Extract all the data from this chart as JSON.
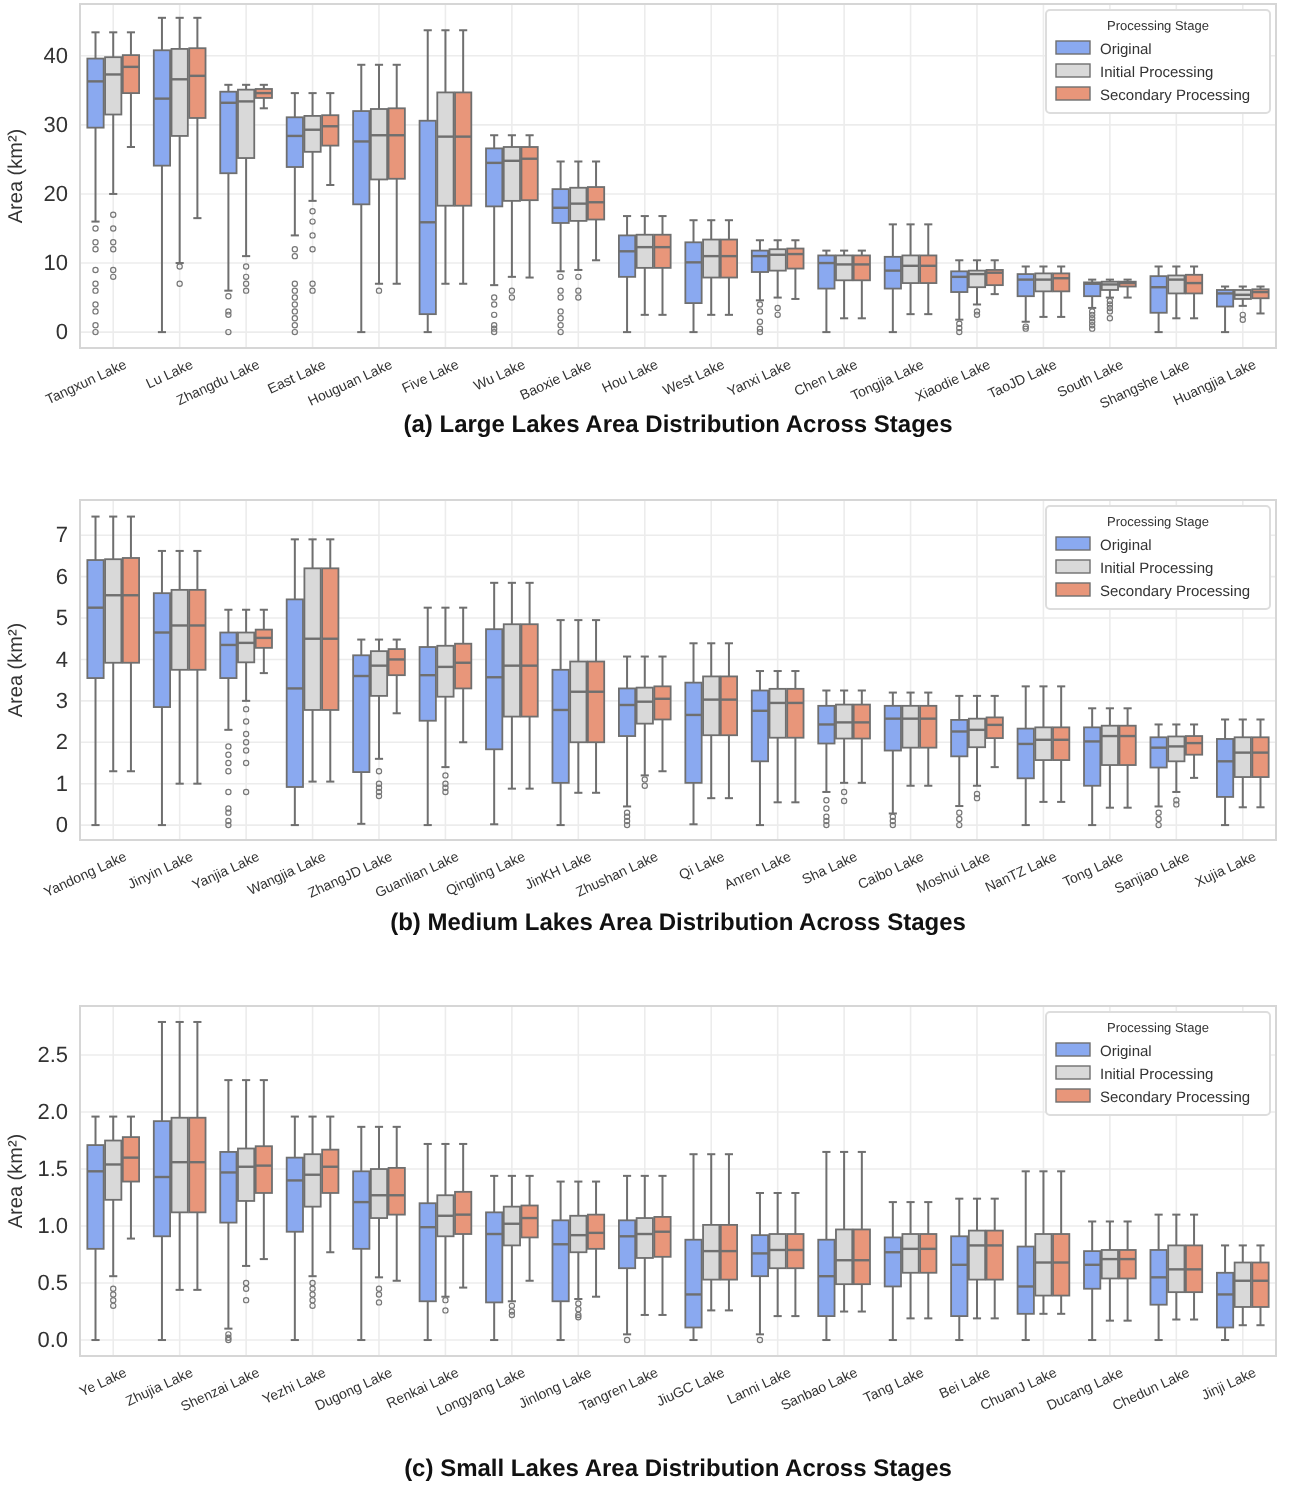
{
  "chart_data": [
    {
      "type": "box",
      "title": "(a) Large Lakes Area Distribution Across Stages",
      "ylabel": "Area (km²)",
      "legend_title": "Processing Stage",
      "legend": "top right",
      "grid": true,
      "categories": [
        "Tangxun Lake",
        "Lu Lake",
        "Zhangdu Lake",
        "East Lake",
        "Houguan Lake",
        "Five Lake",
        "Wu Lake",
        "Baoxie Lake",
        "Hou Lake",
        "West Lake",
        "Yanxi Lake",
        "Chen Lake",
        "Tongjia Lake",
        "Xiaodie Lake",
        "TaoJD Lake",
        "South Lake",
        "Shangshe Lake",
        "Huangjia Lake"
      ],
      "ylim": [
        -2.3,
        47.5
      ],
      "yticks": [
        0,
        10,
        20,
        30,
        40
      ],
      "series": [
        {
          "name": "Original",
          "color": "#8aa9f0",
          "boxes": [
            {
              "low": 16,
              "q1": 29.6,
              "median": 36.3,
              "q3": 39.6,
              "high": 43.4,
              "outliers": [
                15,
                13,
                12,
                9,
                7,
                6,
                4,
                3,
                1,
                0
              ]
            },
            {
              "low": 0,
              "q1": 24.1,
              "median": 33.8,
              "q3": 40.8,
              "high": 45.5
            },
            {
              "low": 6,
              "q1": 23,
              "median": 33.2,
              "q3": 34.8,
              "high": 35.8,
              "outliers": [
                5.2,
                3,
                2.5,
                0
              ]
            },
            {
              "low": 14,
              "q1": 23.9,
              "median": 28.4,
              "q3": 31.1,
              "high": 34.6,
              "outliers": [
                12,
                11,
                7,
                6,
                5,
                4,
                3,
                2,
                1,
                0
              ]
            },
            {
              "low": 0,
              "q1": 18.5,
              "median": 27.6,
              "q3": 32,
              "high": 38.7
            },
            {
              "low": 0,
              "q1": 2.6,
              "median": 15.9,
              "q3": 30.6,
              "high": 43.7
            },
            {
              "low": 6.8,
              "q1": 18.2,
              "median": 24.5,
              "q3": 26.6,
              "high": 28.5,
              "outliers": [
                5,
                4,
                2.5,
                1,
                0.5,
                0
              ]
            },
            {
              "low": 8.8,
              "q1": 15.8,
              "median": 18,
              "q3": 20.7,
              "high": 24.7,
              "outliers": [
                8,
                6,
                5,
                3,
                2,
                1,
                0
              ]
            },
            {
              "low": 0,
              "q1": 8,
              "median": 11.7,
              "q3": 14,
              "high": 16.8
            },
            {
              "low": 0,
              "q1": 4.2,
              "median": 10.1,
              "q3": 13,
              "high": 16.2
            },
            {
              "low": 4.6,
              "q1": 8.7,
              "median": 11,
              "q3": 11.8,
              "high": 13.3,
              "outliers": [
                4,
                3,
                1.5,
                0.5,
                0
              ]
            },
            {
              "low": 0,
              "q1": 6.3,
              "median": 10,
              "q3": 11.1,
              "high": 11.8
            },
            {
              "low": 0,
              "q1": 6.3,
              "median": 8.9,
              "q3": 10.9,
              "high": 15.6
            },
            {
              "low": 1.8,
              "q1": 5.8,
              "median": 8,
              "q3": 8.8,
              "high": 10.4,
              "outliers": [
                1.2,
                0.6,
                0
              ]
            },
            {
              "low": 1.5,
              "q1": 5.2,
              "median": 7.6,
              "q3": 8.4,
              "high": 9.5,
              "outliers": [
                0.8,
                0.5
              ]
            },
            {
              "low": 3.5,
              "q1": 5.2,
              "median": 7,
              "q3": 7.2,
              "high": 7.6,
              "outliers": [
                3,
                2.5,
                2,
                1.5,
                1,
                0.5
              ]
            },
            {
              "low": 0,
              "q1": 2.8,
              "median": 6.5,
              "q3": 8.1,
              "high": 9.5
            },
            {
              "low": 0,
              "q1": 3.7,
              "median": 5.6,
              "q3": 6.1,
              "high": 6.6
            }
          ]
        },
        {
          "name": "Initial Processing",
          "color": "#d9d9d9",
          "boxes": [
            {
              "low": 20,
              "q1": 31.5,
              "median": 37.3,
              "q3": 39.8,
              "high": 43.4,
              "outliers": [
                17,
                15,
                13,
                12,
                9,
                8
              ]
            },
            {
              "low": 10,
              "q1": 28.4,
              "median": 36.6,
              "q3": 41,
              "high": 45.5,
              "outliers": [
                9.5,
                7
              ]
            },
            {
              "low": 11,
              "q1": 25.2,
              "median": 33.4,
              "q3": 35.1,
              "high": 35.8,
              "outliers": [
                9.5,
                8,
                7,
                6
              ]
            },
            {
              "low": 19,
              "q1": 26.1,
              "median": 29.3,
              "q3": 31.3,
              "high": 34.6,
              "outliers": [
                17.5,
                16,
                14,
                12,
                7,
                6
              ]
            },
            {
              "low": 7,
              "q1": 22.1,
              "median": 28.5,
              "q3": 32.3,
              "high": 38.7,
              "outliers": [
                6
              ]
            },
            {
              "low": 7,
              "q1": 18.3,
              "median": 28.3,
              "q3": 34.7,
              "high": 43.7
            },
            {
              "low": 8,
              "q1": 19,
              "median": 24.8,
              "q3": 26.8,
              "high": 28.5,
              "outliers": [
                6,
                5
              ]
            },
            {
              "low": 9,
              "q1": 16.1,
              "median": 18.6,
              "q3": 20.9,
              "high": 24.7,
              "outliers": [
                8,
                6,
                5
              ]
            },
            {
              "low": 2.5,
              "q1": 9.3,
              "median": 12.3,
              "q3": 14.1,
              "high": 16.8
            },
            {
              "low": 2.5,
              "q1": 7.9,
              "median": 11,
              "q3": 13.4,
              "high": 16.2
            },
            {
              "low": 5,
              "q1": 8.9,
              "median": 11.2,
              "q3": 12,
              "high": 13.3,
              "outliers": [
                3.5,
                2.5
              ]
            },
            {
              "low": 2,
              "q1": 7.5,
              "median": 9.8,
              "q3": 11.1,
              "high": 11.8
            },
            {
              "low": 2.6,
              "q1": 7.1,
              "median": 9.6,
              "q3": 11.1,
              "high": 15.6
            },
            {
              "low": 4,
              "q1": 6.5,
              "median": 8.4,
              "q3": 8.9,
              "high": 10.4,
              "outliers": [
                3,
                2.5
              ]
            },
            {
              "low": 2.2,
              "q1": 5.9,
              "median": 7.6,
              "q3": 8.5,
              "high": 9.5
            },
            {
              "low": 5,
              "q1": 6.1,
              "median": 6.9,
              "q3": 7.3,
              "high": 7.6,
              "outliers": [
                4.5,
                4,
                3.5,
                3,
                2
              ]
            },
            {
              "low": 2,
              "q1": 5.6,
              "median": 7.6,
              "q3": 8.2,
              "high": 9.5
            },
            {
              "low": 3.8,
              "q1": 4.8,
              "median": 5.4,
              "q3": 6.1,
              "high": 6.6,
              "outliers": [
                2.5,
                1.8
              ]
            }
          ]
        },
        {
          "name": "Secondary Processing",
          "color": "#e8967a",
          "boxes": [
            {
              "low": 26.8,
              "q1": 34.6,
              "median": 38.4,
              "q3": 40.1,
              "high": 43.4
            },
            {
              "low": 16.5,
              "q1": 31,
              "median": 37.1,
              "q3": 41.1,
              "high": 45.5
            },
            {
              "low": 32.4,
              "q1": 33.9,
              "median": 34.6,
              "q3": 35.2,
              "high": 35.8
            },
            {
              "low": 21.3,
              "q1": 27,
              "median": 29.8,
              "q3": 31.4,
              "high": 34.6
            },
            {
              "low": 7,
              "q1": 22.2,
              "median": 28.5,
              "q3": 32.4,
              "high": 38.7
            },
            {
              "low": 7,
              "q1": 18.3,
              "median": 28.3,
              "q3": 34.7,
              "high": 43.7
            },
            {
              "low": 7.9,
              "q1": 19.1,
              "median": 25.1,
              "q3": 26.8,
              "high": 28.5
            },
            {
              "low": 10.4,
              "q1": 16.3,
              "median": 18.8,
              "q3": 21,
              "high": 24.7
            },
            {
              "low": 2.5,
              "q1": 9.3,
              "median": 12.3,
              "q3": 14.1,
              "high": 16.8
            },
            {
              "low": 2.5,
              "q1": 7.9,
              "median": 11,
              "q3": 13.4,
              "high": 16.2
            },
            {
              "low": 4.8,
              "q1": 9.2,
              "median": 11.3,
              "q3": 12.1,
              "high": 13.3
            },
            {
              "low": 2,
              "q1": 7.5,
              "median": 9.8,
              "q3": 11.1,
              "high": 11.8
            },
            {
              "low": 2.6,
              "q1": 7.1,
              "median": 9.6,
              "q3": 11.1,
              "high": 15.6
            },
            {
              "low": 5.5,
              "q1": 6.8,
              "median": 8.6,
              "q3": 9,
              "high": 10.4
            },
            {
              "low": 2.2,
              "q1": 5.9,
              "median": 7.8,
              "q3": 8.5,
              "high": 9.5
            },
            {
              "low": 5,
              "q1": 6.6,
              "median": 7.1,
              "q3": 7.3,
              "high": 7.6
            },
            {
              "low": 2,
              "q1": 5.6,
              "median": 7.1,
              "q3": 8.3,
              "high": 9.5
            },
            {
              "low": 2.7,
              "q1": 4.9,
              "median": 5.8,
              "q3": 6.2,
              "high": 6.6
            }
          ]
        }
      ]
    },
    {
      "type": "box",
      "title": "(b) Medium Lakes Area Distribution Across Stages",
      "ylabel": "Area (km²)",
      "legend_title": "Processing Stage",
      "legend": "top right",
      "grid": true,
      "categories": [
        "Yandong Lake",
        "Jinyin Lake",
        "Yanjia Lake",
        "Wangjia Lake",
        "ZhangJD Lake",
        "Guanlian Lake",
        "Qingling Lake",
        "JinKH Lake",
        "Zhushan Lake",
        "Qi Lake",
        "Anren Lake",
        "Sha Lake",
        "Caibo Lake",
        "Moshui Lake",
        "NanTZ Lake",
        "Tong Lake",
        "Sanjiao Lake",
        "Xujia Lake"
      ],
      "ylim": [
        -0.36,
        7.85
      ],
      "yticks": [
        0,
        1,
        2,
        3,
        4,
        5,
        6,
        7
      ],
      "series": [
        {
          "name": "Original",
          "color": "#8aa9f0",
          "boxes": [
            {
              "low": 0,
              "q1": 3.55,
              "median": 5.25,
              "q3": 6.4,
              "high": 7.45
            },
            {
              "low": 0,
              "q1": 2.85,
              "median": 4.65,
              "q3": 5.6,
              "high": 6.62
            },
            {
              "low": 2.3,
              "q1": 3.55,
              "median": 4.35,
              "q3": 4.65,
              "high": 5.2,
              "outliers": [
                1.9,
                1.7,
                1.5,
                1.3,
                0.8,
                0.4,
                0.3,
                0.1,
                0
              ]
            },
            {
              "low": 0,
              "q1": 0.92,
              "median": 3.3,
              "q3": 5.45,
              "high": 6.9
            },
            {
              "low": 0.03,
              "q1": 1.28,
              "median": 3.6,
              "q3": 4.1,
              "high": 4.48
            },
            {
              "low": 0,
              "q1": 2.52,
              "median": 3.62,
              "q3": 4.3,
              "high": 5.25
            },
            {
              "low": 0.02,
              "q1": 1.83,
              "median": 3.57,
              "q3": 4.73,
              "high": 5.85
            },
            {
              "low": 0,
              "q1": 1.02,
              "median": 2.78,
              "q3": 3.75,
              "high": 4.95
            },
            {
              "low": 0.45,
              "q1": 2.15,
              "median": 2.9,
              "q3": 3.3,
              "high": 4.07,
              "outliers": [
                0.3,
                0.2,
                0.1,
                0
              ]
            },
            {
              "low": 0.02,
              "q1": 1.02,
              "median": 2.66,
              "q3": 3.44,
              "high": 4.39
            },
            {
              "low": 0,
              "q1": 1.54,
              "median": 2.76,
              "q3": 3.25,
              "high": 3.72
            },
            {
              "low": 0.8,
              "q1": 1.97,
              "median": 2.43,
              "q3": 2.88,
              "high": 3.25,
              "outliers": [
                0.6,
                0.4,
                0.2,
                0.1,
                0
              ]
            },
            {
              "low": 0.28,
              "q1": 1.8,
              "median": 2.57,
              "q3": 2.88,
              "high": 3.2,
              "outliers": [
                0.2,
                0.1,
                0
              ]
            },
            {
              "low": 0.46,
              "q1": 1.66,
              "median": 2.26,
              "q3": 2.54,
              "high": 3.12,
              "outliers": [
                0.3,
                0.15,
                0
              ]
            },
            {
              "low": 0,
              "q1": 1.13,
              "median": 1.96,
              "q3": 2.33,
              "high": 3.35
            },
            {
              "low": 0,
              "q1": 0.95,
              "median": 2.02,
              "q3": 2.36,
              "high": 2.82
            },
            {
              "low": 0.45,
              "q1": 1.39,
              "median": 1.87,
              "q3": 2.12,
              "high": 2.43,
              "outliers": [
                0.3,
                0.15,
                0
              ]
            },
            {
              "low": 0,
              "q1": 0.68,
              "median": 1.54,
              "q3": 2.08,
              "high": 2.55
            }
          ]
        },
        {
          "name": "Initial Processing",
          "color": "#d9d9d9",
          "boxes": [
            {
              "low": 1.3,
              "q1": 3.92,
              "median": 5.55,
              "q3": 6.42,
              "high": 7.45
            },
            {
              "low": 1,
              "q1": 3.75,
              "median": 4.82,
              "q3": 5.68,
              "high": 6.62
            },
            {
              "low": 3,
              "q1": 3.93,
              "median": 4.4,
              "q3": 4.65,
              "high": 5.2,
              "outliers": [
                2.8,
                2.5,
                2.2,
                2,
                1.8,
                1.5,
                0.8
              ]
            },
            {
              "low": 1.05,
              "q1": 2.78,
              "median": 4.5,
              "q3": 6.2,
              "high": 6.9
            },
            {
              "low": 1.6,
              "q1": 3.12,
              "median": 3.85,
              "q3": 4.2,
              "high": 4.48,
              "outliers": [
                1.3,
                1,
                0.9,
                0.8,
                0.7
              ]
            },
            {
              "low": 1.4,
              "q1": 3.1,
              "median": 3.82,
              "q3": 4.33,
              "high": 5.25,
              "outliers": [
                1.2,
                1,
                0.9,
                0.8
              ]
            },
            {
              "low": 0.88,
              "q1": 2.62,
              "median": 3.85,
              "q3": 4.85,
              "high": 5.85
            },
            {
              "low": 0.78,
              "q1": 2,
              "median": 3.22,
              "q3": 3.95,
              "high": 4.95
            },
            {
              "low": 1.2,
              "q1": 2.45,
              "median": 2.98,
              "q3": 3.32,
              "high": 4.07,
              "outliers": [
                1.1,
                0.95
              ]
            },
            {
              "low": 0.65,
              "q1": 2.17,
              "median": 3.03,
              "q3": 3.59,
              "high": 4.39
            },
            {
              "low": 0.55,
              "q1": 2.11,
              "median": 2.95,
              "q3": 3.29,
              "high": 3.72
            },
            {
              "low": 1.02,
              "q1": 2.09,
              "median": 2.48,
              "q3": 2.91,
              "high": 3.25,
              "outliers": [
                0.8,
                0.58
              ]
            },
            {
              "low": 0.95,
              "q1": 1.87,
              "median": 2.57,
              "q3": 2.88,
              "high": 3.2
            },
            {
              "low": 0.95,
              "q1": 1.88,
              "median": 2.3,
              "q3": 2.57,
              "high": 3.12,
              "outliers": [
                0.75,
                0.65
              ]
            },
            {
              "low": 0.56,
              "q1": 1.57,
              "median": 2.06,
              "q3": 2.36,
              "high": 3.35
            },
            {
              "low": 0.42,
              "q1": 1.45,
              "median": 2.15,
              "q3": 2.4,
              "high": 2.82
            },
            {
              "low": 0.8,
              "q1": 1.54,
              "median": 1.9,
              "q3": 2.14,
              "high": 2.43,
              "outliers": [
                0.6,
                0.5
              ]
            },
            {
              "low": 0.43,
              "q1": 1.16,
              "median": 1.75,
              "q3": 2.12,
              "high": 2.55
            }
          ]
        },
        {
          "name": "Secondary Processing",
          "color": "#e8967a",
          "boxes": [
            {
              "low": 1.3,
              "q1": 3.92,
              "median": 5.55,
              "q3": 6.45,
              "high": 7.45
            },
            {
              "low": 1,
              "q1": 3.75,
              "median": 4.82,
              "q3": 5.68,
              "high": 6.62
            },
            {
              "low": 3.67,
              "q1": 4.28,
              "median": 4.52,
              "q3": 4.72,
              "high": 5.2
            },
            {
              "low": 1.05,
              "q1": 2.78,
              "median": 4.5,
              "q3": 6.2,
              "high": 6.9
            },
            {
              "low": 2.7,
              "q1": 3.62,
              "median": 4,
              "q3": 4.25,
              "high": 4.48
            },
            {
              "low": 2,
              "q1": 3.3,
              "median": 3.92,
              "q3": 4.38,
              "high": 5.25
            },
            {
              "low": 0.88,
              "q1": 2.62,
              "median": 3.85,
              "q3": 4.85,
              "high": 5.85
            },
            {
              "low": 0.78,
              "q1": 2,
              "median": 3.22,
              "q3": 3.95,
              "high": 4.95
            },
            {
              "low": 1.3,
              "q1": 2.55,
              "median": 3.05,
              "q3": 3.35,
              "high": 4.07
            },
            {
              "low": 0.65,
              "q1": 2.17,
              "median": 3.03,
              "q3": 3.59,
              "high": 4.39
            },
            {
              "low": 0.55,
              "q1": 2.11,
              "median": 2.95,
              "q3": 3.29,
              "high": 3.72
            },
            {
              "low": 1.02,
              "q1": 2.09,
              "median": 2.48,
              "q3": 2.91,
              "high": 3.25
            },
            {
              "low": 0.95,
              "q1": 1.87,
              "median": 2.57,
              "q3": 2.88,
              "high": 3.2
            },
            {
              "low": 1.4,
              "q1": 2.1,
              "median": 2.42,
              "q3": 2.6,
              "high": 3.12
            },
            {
              "low": 0.56,
              "q1": 1.57,
              "median": 2.06,
              "q3": 2.36,
              "high": 3.35
            },
            {
              "low": 0.42,
              "q1": 1.45,
              "median": 2.15,
              "q3": 2.4,
              "high": 2.82
            },
            {
              "low": 1.14,
              "q1": 1.7,
              "median": 1.98,
              "q3": 2.15,
              "high": 2.43
            },
            {
              "low": 0.43,
              "q1": 1.16,
              "median": 1.75,
              "q3": 2.12,
              "high": 2.55
            }
          ]
        }
      ]
    },
    {
      "type": "box",
      "title": "(c) Small Lakes Area Distribution Across Stages",
      "ylabel": "Area (km²)",
      "legend_title": "Processing Stage",
      "legend": "top right",
      "grid": true,
      "categories": [
        "Ye Lake",
        "Zhujia Lake",
        "Shenzai Lake",
        "Yezhi Lake",
        "Dugong Lake",
        "Renkai Lake",
        "Longyang Lake",
        "Jinlong Lake",
        "Tangren Lake",
        "JiuGC Lake",
        "Lanni Lake",
        "Sanbao Lake",
        "Tang Lake",
        "Bei Lake",
        "ChuanJ Lake",
        "Ducang Lake",
        "Chedun Lake",
        "Jinji Lake"
      ],
      "ylim": [
        -0.14,
        2.93
      ],
      "yticks": [
        {
          "value": 0,
          "label": "0.0"
        },
        0.5,
        {
          "value": 1,
          "label": "1.0"
        },
        1.5,
        {
          "value": 2,
          "label": "2.0"
        },
        2.5
      ],
      "series": [
        {
          "name": "Original",
          "color": "#8aa9f0",
          "boxes": [
            {
              "low": 0,
              "q1": 0.8,
              "median": 1.48,
              "q3": 1.71,
              "high": 1.96
            },
            {
              "low": 0,
              "q1": 0.91,
              "median": 1.43,
              "q3": 1.92,
              "high": 2.79
            },
            {
              "low": 0.1,
              "q1": 1.03,
              "median": 1.47,
              "q3": 1.65,
              "high": 2.28,
              "outliers": [
                0.05,
                0.02,
                0
              ]
            },
            {
              "low": 0,
              "q1": 0.95,
              "median": 1.4,
              "q3": 1.6,
              "high": 1.96
            },
            {
              "low": 0,
              "q1": 0.8,
              "median": 1.21,
              "q3": 1.48,
              "high": 1.87
            },
            {
              "low": 0,
              "q1": 0.34,
              "median": 0.99,
              "q3": 1.2,
              "high": 1.72
            },
            {
              "low": 0,
              "q1": 0.33,
              "median": 0.93,
              "q3": 1.12,
              "high": 1.44
            },
            {
              "low": 0,
              "q1": 0.34,
              "median": 0.84,
              "q3": 1.05,
              "high": 1.39
            },
            {
              "low": 0.05,
              "q1": 0.63,
              "median": 0.91,
              "q3": 1.05,
              "high": 1.44,
              "outliers": [
                0
              ]
            },
            {
              "low": 0,
              "q1": 0.11,
              "median": 0.4,
              "q3": 0.88,
              "high": 1.63
            },
            {
              "low": 0.05,
              "q1": 0.56,
              "median": 0.76,
              "q3": 0.92,
              "high": 1.29,
              "outliers": [
                0
              ]
            },
            {
              "low": 0,
              "q1": 0.21,
              "median": 0.56,
              "q3": 0.88,
              "high": 1.65
            },
            {
              "low": 0,
              "q1": 0.47,
              "median": 0.77,
              "q3": 0.9,
              "high": 1.21
            },
            {
              "low": 0,
              "q1": 0.21,
              "median": 0.66,
              "q3": 0.91,
              "high": 1.24
            },
            {
              "low": 0,
              "q1": 0.23,
              "median": 0.47,
              "q3": 0.82,
              "high": 1.48
            },
            {
              "low": 0,
              "q1": 0.45,
              "median": 0.66,
              "q3": 0.78,
              "high": 1.04
            },
            {
              "low": 0,
              "q1": 0.31,
              "median": 0.55,
              "q3": 0.79,
              "high": 1.1
            },
            {
              "low": 0,
              "q1": 0.11,
              "median": 0.4,
              "q3": 0.59,
              "high": 0.83
            }
          ]
        },
        {
          "name": "Initial Processing",
          "color": "#d9d9d9",
          "boxes": [
            {
              "low": 0.56,
              "q1": 1.23,
              "median": 1.54,
              "q3": 1.75,
              "high": 1.96,
              "outliers": [
                0.45,
                0.4,
                0.35,
                0.3
              ]
            },
            {
              "low": 0.44,
              "q1": 1.12,
              "median": 1.56,
              "q3": 1.95,
              "high": 2.79
            },
            {
              "low": 0.65,
              "q1": 1.22,
              "median": 1.52,
              "q3": 1.68,
              "high": 2.28,
              "outliers": [
                0.5,
                0.45,
                0.35
              ]
            },
            {
              "low": 0.56,
              "q1": 1.17,
              "median": 1.45,
              "q3": 1.63,
              "high": 1.96,
              "outliers": [
                0.5,
                0.45,
                0.4,
                0.35,
                0.3
              ]
            },
            {
              "low": 0.55,
              "q1": 1.07,
              "median": 1.27,
              "q3": 1.5,
              "high": 1.87,
              "outliers": [
                0.45,
                0.4,
                0.33
              ]
            },
            {
              "low": 0.38,
              "q1": 0.91,
              "median": 1.09,
              "q3": 1.27,
              "high": 1.72,
              "outliers": [
                0.35,
                0.26
              ]
            },
            {
              "low": 0.34,
              "q1": 0.83,
              "median": 1.02,
              "q3": 1.17,
              "high": 1.44,
              "outliers": [
                0.3,
                0.25,
                0.22
              ]
            },
            {
              "low": 0.36,
              "q1": 0.77,
              "median": 0.92,
              "q3": 1.09,
              "high": 1.39,
              "outliers": [
                0.32,
                0.27,
                0.22,
                0.2
              ]
            },
            {
              "low": 0.22,
              "q1": 0.72,
              "median": 0.93,
              "q3": 1.07,
              "high": 1.44
            },
            {
              "low": 0.26,
              "q1": 0.53,
              "median": 0.78,
              "q3": 1.01,
              "high": 1.63
            },
            {
              "low": 0.21,
              "q1": 0.63,
              "median": 0.79,
              "q3": 0.93,
              "high": 1.29
            },
            {
              "low": 0.25,
              "q1": 0.49,
              "median": 0.7,
              "q3": 0.97,
              "high": 1.65
            },
            {
              "low": 0.19,
              "q1": 0.59,
              "median": 0.8,
              "q3": 0.93,
              "high": 1.21
            },
            {
              "low": 0.19,
              "q1": 0.53,
              "median": 0.83,
              "q3": 0.96,
              "high": 1.24
            },
            {
              "low": 0.23,
              "q1": 0.39,
              "median": 0.68,
              "q3": 0.93,
              "high": 1.48
            },
            {
              "low": 0.17,
              "q1": 0.54,
              "median": 0.71,
              "q3": 0.79,
              "high": 1.04
            },
            {
              "low": 0.18,
              "q1": 0.42,
              "median": 0.62,
              "q3": 0.83,
              "high": 1.1
            },
            {
              "low": 0.13,
              "q1": 0.29,
              "median": 0.52,
              "q3": 0.68,
              "high": 0.83
            }
          ]
        },
        {
          "name": "Secondary Processing",
          "color": "#e8967a",
          "boxes": [
            {
              "low": 0.89,
              "q1": 1.39,
              "median": 1.6,
              "q3": 1.78,
              "high": 1.96
            },
            {
              "low": 0.44,
              "q1": 1.12,
              "median": 1.56,
              "q3": 1.95,
              "high": 2.79
            },
            {
              "low": 0.71,
              "q1": 1.29,
              "median": 1.53,
              "q3": 1.7,
              "high": 2.28
            },
            {
              "low": 0.77,
              "q1": 1.29,
              "median": 1.52,
              "q3": 1.67,
              "high": 1.96
            },
            {
              "low": 0.52,
              "q1": 1.1,
              "median": 1.27,
              "q3": 1.51,
              "high": 1.87
            },
            {
              "low": 0.46,
              "q1": 0.93,
              "median": 1.1,
              "q3": 1.3,
              "high": 1.72
            },
            {
              "low": 0.52,
              "q1": 0.9,
              "median": 1.07,
              "q3": 1.18,
              "high": 1.44
            },
            {
              "low": 0.38,
              "q1": 0.8,
              "median": 0.94,
              "q3": 1.1,
              "high": 1.39
            },
            {
              "low": 0.22,
              "q1": 0.73,
              "median": 0.95,
              "q3": 1.08,
              "high": 1.44
            },
            {
              "low": 0.26,
              "q1": 0.53,
              "median": 0.78,
              "q3": 1.01,
              "high": 1.63
            },
            {
              "low": 0.21,
              "q1": 0.63,
              "median": 0.79,
              "q3": 0.93,
              "high": 1.29
            },
            {
              "low": 0.25,
              "q1": 0.49,
              "median": 0.7,
              "q3": 0.97,
              "high": 1.65
            },
            {
              "low": 0.19,
              "q1": 0.59,
              "median": 0.8,
              "q3": 0.93,
              "high": 1.21
            },
            {
              "low": 0.19,
              "q1": 0.53,
              "median": 0.83,
              "q3": 0.96,
              "high": 1.24
            },
            {
              "low": 0.23,
              "q1": 0.39,
              "median": 0.68,
              "q3": 0.93,
              "high": 1.48
            },
            {
              "low": 0.17,
              "q1": 0.54,
              "median": 0.71,
              "q3": 0.79,
              "high": 1.04
            },
            {
              "low": 0.18,
              "q1": 0.42,
              "median": 0.62,
              "q3": 0.83,
              "high": 1.1
            },
            {
              "low": 0.13,
              "q1": 0.29,
              "median": 0.52,
              "q3": 0.68,
              "high": 0.83
            }
          ]
        }
      ]
    }
  ]
}
